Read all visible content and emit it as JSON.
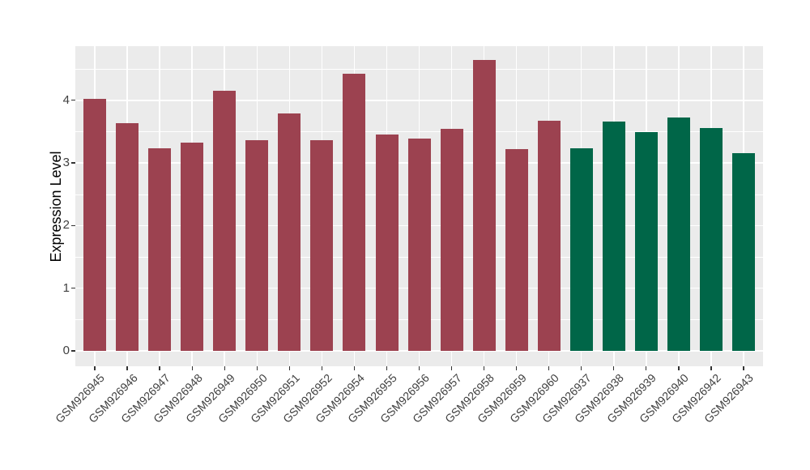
{
  "chart_data": {
    "type": "bar",
    "title": "",
    "xlabel": "",
    "ylabel": "Expression Level",
    "ylim": [
      0,
      4.87
    ],
    "yticks": [
      0,
      1,
      2,
      3,
      4
    ],
    "ytick_labels": [
      "0",
      "1",
      "2",
      "3",
      "4"
    ],
    "minor_grid_step": 0.5,
    "grid": "on",
    "legend_position": "none",
    "panel_background": "#EBEBEB",
    "grid_color": "#FFFFFF",
    "axis_text_color": "#404040",
    "categories": [
      "GSM926945",
      "GSM926946",
      "GSM926947",
      "GSM926948",
      "GSM926949",
      "GSM926950",
      "GSM926951",
      "GSM926952",
      "GSM926954",
      "GSM926955",
      "GSM926956",
      "GSM926957",
      "GSM926958",
      "GSM926959",
      "GSM926960",
      "GSM926937",
      "GSM926938",
      "GSM926939",
      "GSM926940",
      "GSM926942",
      "GSM926943"
    ],
    "values": [
      4.03,
      3.63,
      3.24,
      3.32,
      4.15,
      3.36,
      3.79,
      3.36,
      4.42,
      3.45,
      3.39,
      3.55,
      4.64,
      3.22,
      3.68,
      3.24,
      3.66,
      3.49,
      3.73,
      3.56,
      3.16
    ],
    "groups": [
      "group1",
      "group1",
      "group1",
      "group1",
      "group1",
      "group1",
      "group1",
      "group1",
      "group1",
      "group1",
      "group1",
      "group1",
      "group1",
      "group1",
      "group1",
      "group2",
      "group2",
      "group2",
      "group2",
      "group2",
      "group2"
    ],
    "group_colors": {
      "group1": "#9C4250",
      "group2": "#006648"
    }
  }
}
